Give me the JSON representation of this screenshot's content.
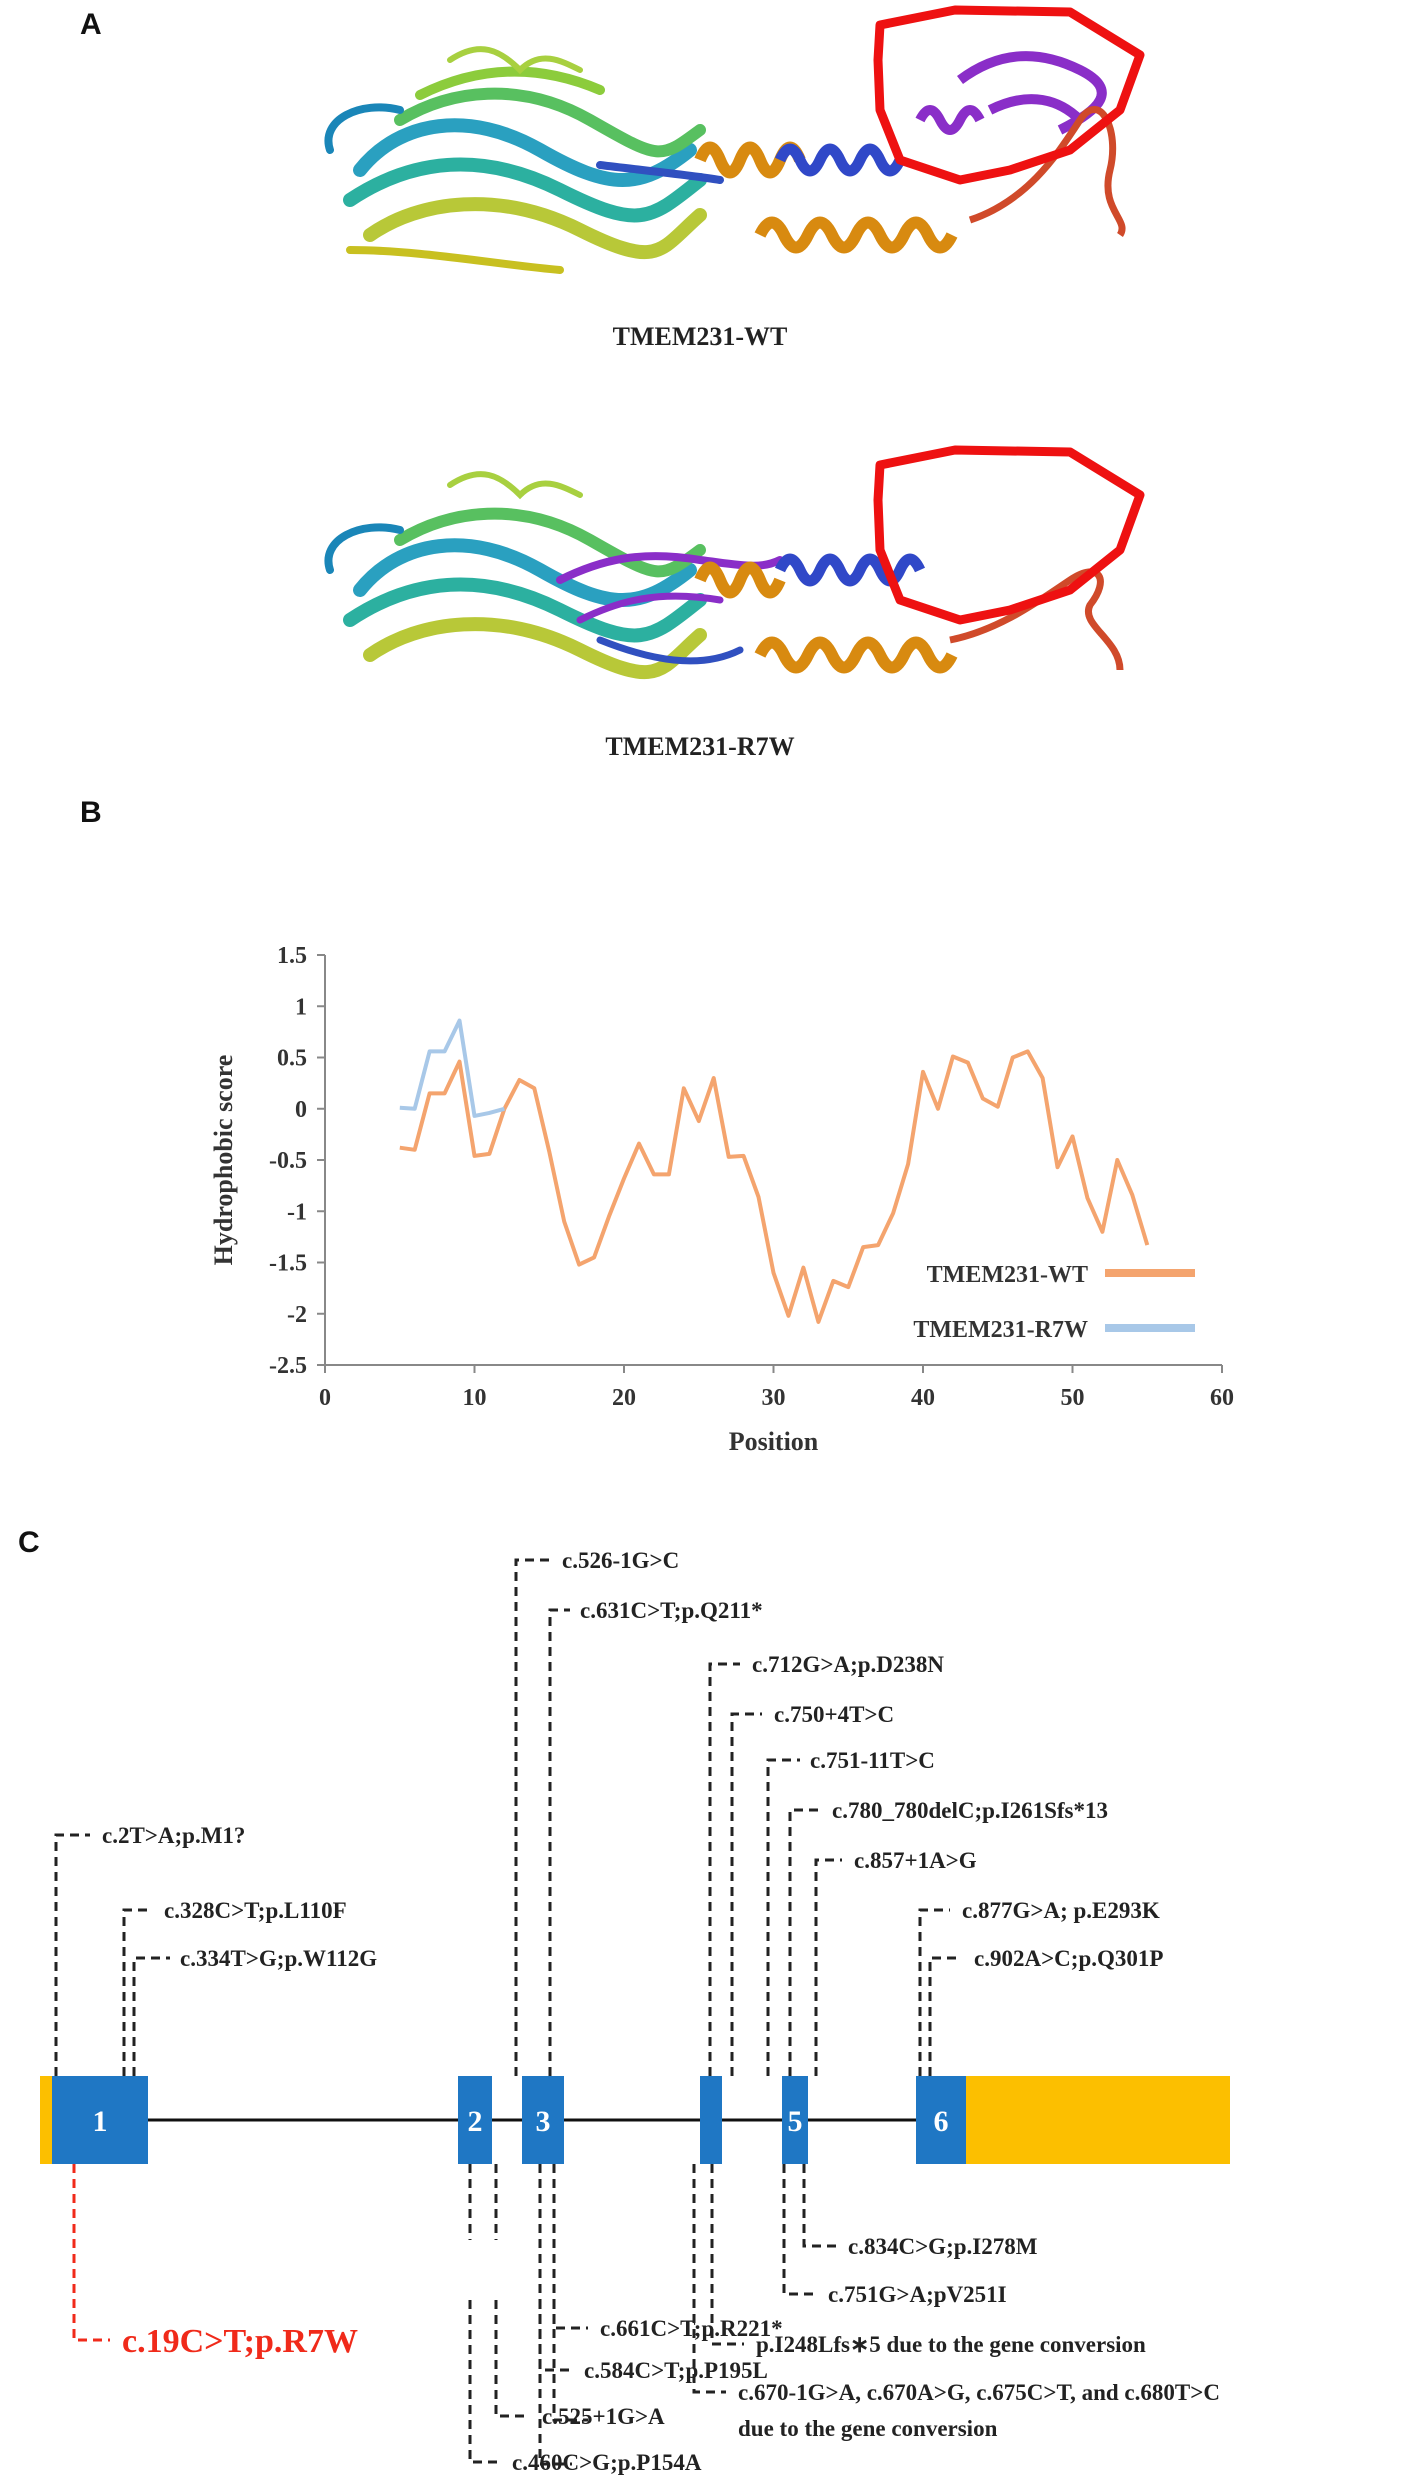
{
  "panels": {
    "a": "A",
    "b": "B",
    "c": "C"
  },
  "structures": {
    "wt_caption": "TMEM231-WT",
    "mut_caption": "TMEM231-R7W",
    "colors": {
      "highlight": "#ee1111"
    }
  },
  "chart_data": {
    "type": "line",
    "xlabel": "Position",
    "ylabel": "Hydrophobic score",
    "xlim": [
      0,
      60
    ],
    "ylim": [
      -2.5,
      1.5
    ],
    "x_ticks": [
      "0",
      "10",
      "20",
      "30",
      "40",
      "50",
      "60"
    ],
    "y_ticks": [
      "1.5",
      "1",
      "0.5",
      "0",
      "-0.5",
      "-1",
      "-1.5",
      "-2",
      "-2.5"
    ],
    "grid": false,
    "legend_position": "bottom-right",
    "series": [
      {
        "name": "TMEM231-WT",
        "color": "#f4a46e",
        "x": [
          5,
          6,
          7,
          8,
          9,
          10,
          11,
          12,
          13,
          14,
          15,
          16,
          17,
          18,
          19,
          20,
          21,
          22,
          23,
          24,
          25,
          26,
          27,
          28,
          29,
          30,
          31,
          32,
          33,
          34,
          35,
          36,
          37,
          38,
          39,
          40,
          41,
          42,
          43,
          44,
          45,
          46,
          47,
          48,
          49,
          50,
          51,
          52,
          53,
          54,
          55
        ],
        "y": [
          -0.38,
          -0.4,
          0.15,
          0.15,
          0.46,
          -0.46,
          -0.44,
          0.0,
          0.28,
          0.2,
          -0.42,
          -1.1,
          -1.52,
          -1.45,
          -1.05,
          -0.68,
          -0.34,
          -0.64,
          -0.64,
          0.2,
          -0.12,
          0.3,
          -0.47,
          -0.46,
          -0.86,
          -1.6,
          -2.02,
          -1.55,
          -2.08,
          -1.68,
          -1.74,
          -1.35,
          -1.33,
          -1.02,
          -0.54,
          0.36,
          0.0,
          0.51,
          0.45,
          0.1,
          0.02,
          0.5,
          0.56,
          0.3,
          -0.57,
          -0.27,
          -0.87,
          -1.2,
          -0.5,
          -0.84,
          -1.33
        ]
      },
      {
        "name": "TMEM231-R7W",
        "color": "#a8c8e8",
        "x": [
          5,
          6,
          7,
          8,
          9,
          10,
          11,
          12
        ],
        "y": [
          0.01,
          0.0,
          0.56,
          0.56,
          0.86,
          -0.07,
          -0.04,
          0.0
        ]
      }
    ]
  },
  "gene": {
    "colors": {
      "exon": "#1f77c4",
      "utr": "#fcbf00",
      "line": "#111111",
      "highlight": "#f02a1a"
    },
    "exons": [
      "1",
      "2",
      "3",
      "",
      "5",
      "6"
    ],
    "mutations_above": [
      "c.526-1G>C",
      "c.631C>T;p.Q211*",
      "c.712G>A;p.D238N",
      "c.750+4T>C",
      "c.751-11T>C",
      "c.780_780delC;p.I261Sfs*13",
      "c.857+1A>G",
      "c.877G>A; p.E293K",
      "c.902A>C;p.Q301P",
      "c.2T>A;p.M1?",
      "c.328C>T;p.L110F",
      "c.334T>G;p.W112G"
    ],
    "mutations_below": [
      "c.834C>G;p.I278M",
      "c.751G>A;pV251I",
      "p.I248Lfs∗5 due to the gene conversion",
      "c.670-1G>A, c.670A>G, c.675C>T, and c.680T>C",
      "due to the gene conversion",
      "c.661C>T;p.R221*",
      "c.584C>T;p.P195L",
      "c.525+1G>A",
      "c.460C>G;p.P154A"
    ],
    "highlighted_mutation": "c.19C>T;p.R7W"
  }
}
